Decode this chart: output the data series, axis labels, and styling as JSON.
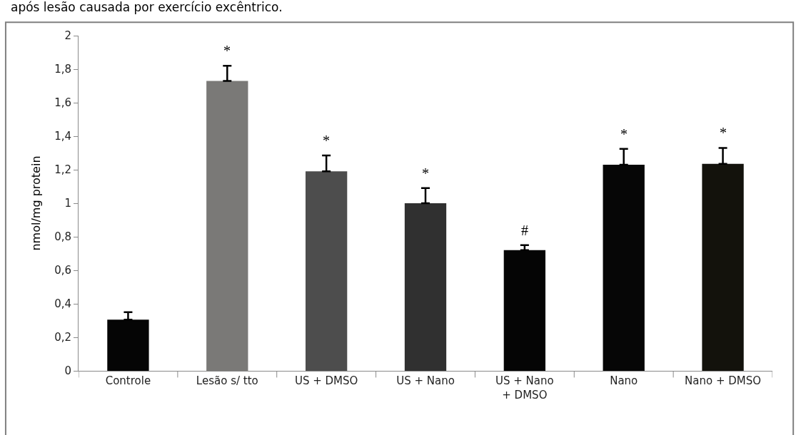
{
  "chart_data": {
    "type": "bar",
    "ylabel": "nmol/mg protein",
    "categories": [
      "Controle",
      "Lesão s/ tto",
      "US + DMSO",
      "US + Nano",
      "US + Nano + DMSO",
      "Nano",
      "Nano + DMSO"
    ],
    "values": [
      0.305,
      1.73,
      1.19,
      1.0,
      0.72,
      1.23,
      1.235
    ],
    "errors": [
      0.045,
      0.09,
      0.095,
      0.09,
      0.03,
      0.095,
      0.095
    ],
    "colors": [
      "#050505",
      "#7a7977",
      "#4d4d4d",
      "#303030",
      "#050505",
      "#060606",
      "#13120c"
    ],
    "ylim": [
      0,
      2
    ],
    "yticks": [
      0,
      {
        "value": 0.2,
        "label": "0,2"
      },
      {
        "value": 0.4,
        "label": "0,4"
      },
      {
        "value": 0.6,
        "label": "0,6"
      },
      {
        "value": 0.8,
        "label": "0,8"
      },
      1,
      {
        "value": 1.2,
        "label": "1,2"
      },
      {
        "value": 1.4,
        "label": "1,4"
      },
      {
        "value": 1.6,
        "label": "1,6"
      },
      {
        "value": 1.8,
        "label": "1,8"
      },
      2
    ],
    "annotations": [
      "após lesão causada por exercício excêntrico.",
      "*",
      "*",
      "*",
      "#",
      "*",
      "*"
    ]
  }
}
